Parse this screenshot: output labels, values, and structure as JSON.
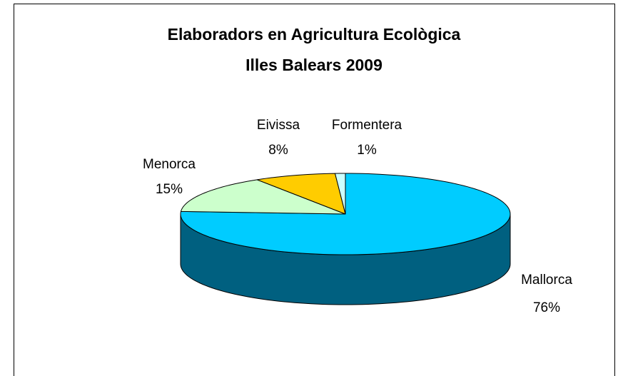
{
  "chart_data": {
    "type": "pie3d",
    "title": "Elaboradors en Agricultura Ecològica",
    "subtitle": "Illes Balears 2009",
    "categories": [
      "Mallorca",
      "Menorca",
      "Eivissa",
      "Formentera"
    ],
    "values": [
      76,
      15,
      8,
      1
    ],
    "value_labels": [
      "76%",
      "15%",
      "8%",
      "1%"
    ],
    "colors": [
      "#00ccff",
      "#ccffcc",
      "#ffcc00",
      "#ccffff"
    ],
    "side_colors": [
      "#006080",
      "#7a997a",
      "#997a00",
      "#7a9999"
    ]
  }
}
